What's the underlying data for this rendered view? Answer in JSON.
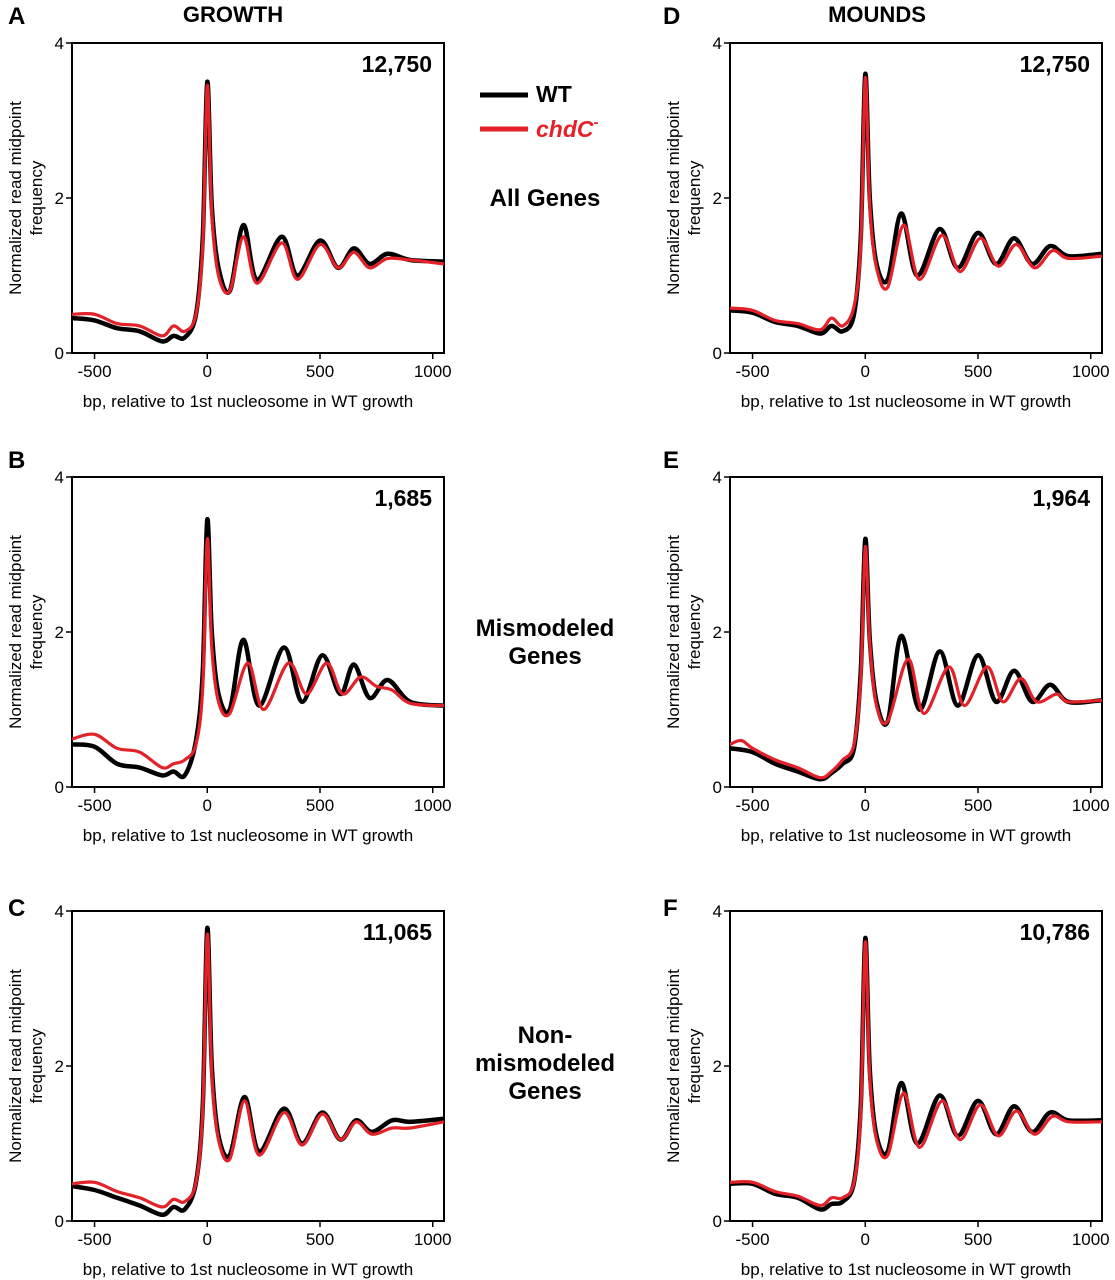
{
  "figure": {
    "column_titles": [
      "GROWTH",
      "MOUNDS"
    ],
    "row_labels": [
      [
        "All Genes"
      ],
      [
        "Mismodeled",
        "Genes"
      ],
      [
        "Non-",
        "mismodeled",
        "Genes"
      ]
    ],
    "legend": [
      {
        "label": "WT",
        "color": "#000000"
      },
      {
        "label": "chdC",
        "superscript": "-",
        "color": "#e32128"
      }
    ]
  },
  "chart_data": [
    {
      "panel": "A",
      "type": "line",
      "count_label": "12,750",
      "xlabel": "bp, relative to 1st nucleosome in WT growth",
      "ylabel": [
        "Normalized read midpoint",
        "frequency"
      ],
      "xticks": [
        -500,
        0,
        500,
        1000
      ],
      "yticks": [
        0,
        2,
        4
      ],
      "xlim": [
        -600,
        1050
      ],
      "ylim": [
        0,
        4
      ],
      "series": [
        {
          "name": "WT",
          "color": "#000000",
          "x": [
            -600,
            -500,
            -400,
            -300,
            -200,
            -150,
            -100,
            -50,
            -20,
            0,
            20,
            50,
            100,
            160,
            220,
            330,
            400,
            500,
            580,
            650,
            720,
            800,
            900,
            1050
          ],
          "y": [
            0.45,
            0.42,
            0.32,
            0.28,
            0.15,
            0.22,
            0.2,
            0.5,
            1.5,
            3.5,
            1.9,
            1.1,
            0.8,
            1.65,
            0.95,
            1.5,
            1.0,
            1.45,
            1.1,
            1.35,
            1.15,
            1.28,
            1.2,
            1.18
          ]
        },
        {
          "name": "chdC",
          "color": "#e32128",
          "x": [
            -600,
            -500,
            -400,
            -300,
            -200,
            -150,
            -100,
            -50,
            -20,
            0,
            20,
            50,
            100,
            160,
            220,
            330,
            400,
            500,
            580,
            650,
            720,
            800,
            900,
            1050
          ],
          "y": [
            0.5,
            0.5,
            0.38,
            0.35,
            0.22,
            0.35,
            0.28,
            0.5,
            1.4,
            3.45,
            1.8,
            1.0,
            0.8,
            1.5,
            0.9,
            1.42,
            0.95,
            1.4,
            1.1,
            1.3,
            1.1,
            1.22,
            1.2,
            1.15
          ]
        }
      ]
    },
    {
      "panel": "B",
      "type": "line",
      "count_label": "1,685",
      "xlabel": "bp, relative to 1st nucleosome in WT growth",
      "ylabel": [
        "Normalized read midpoint",
        "frequency"
      ],
      "xticks": [
        -500,
        0,
        500,
        1000
      ],
      "yticks": [
        0,
        2,
        4
      ],
      "xlim": [
        -600,
        1050
      ],
      "ylim": [
        0,
        4
      ],
      "series": [
        {
          "name": "WT",
          "color": "#000000",
          "x": [
            -600,
            -500,
            -400,
            -300,
            -200,
            -150,
            -100,
            -50,
            -20,
            0,
            20,
            50,
            100,
            160,
            230,
            340,
            420,
            510,
            590,
            650,
            720,
            800,
            900,
            1050
          ],
          "y": [
            0.55,
            0.52,
            0.3,
            0.25,
            0.15,
            0.2,
            0.15,
            0.6,
            1.5,
            3.45,
            2.0,
            1.2,
            1.0,
            1.9,
            1.05,
            1.8,
            1.1,
            1.7,
            1.2,
            1.58,
            1.15,
            1.38,
            1.1,
            1.05
          ]
        },
        {
          "name": "chdC",
          "color": "#e32128",
          "x": [
            -600,
            -500,
            -400,
            -300,
            -200,
            -150,
            -100,
            -50,
            -20,
            0,
            20,
            50,
            100,
            180,
            250,
            360,
            440,
            530,
            600,
            680,
            750,
            820,
            900,
            1050
          ],
          "y": [
            0.62,
            0.68,
            0.5,
            0.45,
            0.25,
            0.3,
            0.35,
            0.55,
            1.3,
            3.2,
            1.8,
            1.1,
            0.95,
            1.6,
            1.0,
            1.6,
            1.2,
            1.6,
            1.2,
            1.42,
            1.3,
            1.25,
            1.08,
            1.05
          ]
        }
      ]
    },
    {
      "panel": "C",
      "type": "line",
      "count_label": "11,065",
      "xlabel": "bp, relative to 1st nucleosome in WT growth",
      "ylabel": [
        "Normalized read midpoint",
        "frequency"
      ],
      "xticks": [
        -500,
        0,
        500,
        1000
      ],
      "yticks": [
        0,
        2,
        4
      ],
      "xlim": [
        -600,
        1050
      ],
      "ylim": [
        0,
        4
      ],
      "series": [
        {
          "name": "WT",
          "color": "#000000",
          "x": [
            -600,
            -500,
            -400,
            -300,
            -200,
            -150,
            -100,
            -50,
            -20,
            0,
            20,
            50,
            100,
            165,
            230,
            340,
            420,
            510,
            590,
            660,
            730,
            820,
            900,
            1050
          ],
          "y": [
            0.45,
            0.4,
            0.3,
            0.2,
            0.08,
            0.18,
            0.15,
            0.5,
            1.5,
            3.78,
            2.0,
            1.1,
            0.85,
            1.6,
            0.9,
            1.45,
            1.0,
            1.4,
            1.05,
            1.3,
            1.15,
            1.3,
            1.28,
            1.32
          ]
        },
        {
          "name": "chdC",
          "color": "#e32128",
          "x": [
            -600,
            -500,
            -400,
            -300,
            -200,
            -150,
            -100,
            -50,
            -20,
            0,
            20,
            50,
            100,
            165,
            230,
            340,
            420,
            510,
            590,
            660,
            730,
            820,
            900,
            1050
          ],
          "y": [
            0.48,
            0.5,
            0.38,
            0.3,
            0.18,
            0.28,
            0.25,
            0.5,
            1.45,
            3.7,
            1.9,
            1.05,
            0.8,
            1.55,
            0.85,
            1.4,
            0.98,
            1.38,
            1.05,
            1.28,
            1.12,
            1.2,
            1.2,
            1.28
          ]
        }
      ]
    },
    {
      "panel": "D",
      "type": "line",
      "count_label": "12,750",
      "xlabel": "bp, relative to 1st nucleosome in WT growth",
      "ylabel": [
        "Normalized read midpoint",
        "frequency"
      ],
      "xticks": [
        -500,
        0,
        500,
        1000
      ],
      "yticks": [
        0,
        2,
        4
      ],
      "xlim": [
        -600,
        1050
      ],
      "ylim": [
        0,
        4
      ],
      "series": [
        {
          "name": "WT",
          "color": "#000000",
          "x": [
            -600,
            -500,
            -400,
            -300,
            -200,
            -150,
            -100,
            -50,
            -20,
            0,
            20,
            50,
            100,
            160,
            230,
            330,
            410,
            500,
            580,
            660,
            740,
            820,
            900,
            1050
          ],
          "y": [
            0.55,
            0.52,
            0.4,
            0.35,
            0.25,
            0.35,
            0.28,
            0.5,
            1.5,
            3.6,
            2.0,
            1.15,
            0.95,
            1.8,
            1.0,
            1.6,
            1.1,
            1.55,
            1.15,
            1.48,
            1.15,
            1.38,
            1.25,
            1.28
          ]
        },
        {
          "name": "chdC",
          "color": "#e32128",
          "x": [
            -600,
            -500,
            -400,
            -300,
            -200,
            -150,
            -100,
            -50,
            -20,
            0,
            20,
            50,
            100,
            170,
            240,
            340,
            420,
            510,
            590,
            670,
            750,
            830,
            900,
            1050
          ],
          "y": [
            0.58,
            0.55,
            0.42,
            0.38,
            0.3,
            0.45,
            0.35,
            0.6,
            1.4,
            3.55,
            1.9,
            1.1,
            0.85,
            1.65,
            0.95,
            1.52,
            1.05,
            1.48,
            1.12,
            1.4,
            1.1,
            1.32,
            1.22,
            1.25
          ]
        }
      ]
    },
    {
      "panel": "E",
      "type": "line",
      "count_label": "1,964",
      "xlabel": "bp, relative to 1st nucleosome in WT growth",
      "ylabel": [
        "Normalized read midpoint",
        "frequency"
      ],
      "xticks": [
        -500,
        0,
        500,
        1000
      ],
      "yticks": [
        0,
        2,
        4
      ],
      "xlim": [
        -600,
        1050
      ],
      "ylim": [
        0,
        4
      ],
      "series": [
        {
          "name": "WT",
          "color": "#000000",
          "x": [
            -600,
            -500,
            -400,
            -300,
            -200,
            -150,
            -100,
            -50,
            -20,
            0,
            20,
            50,
            100,
            160,
            240,
            330,
            410,
            500,
            580,
            660,
            740,
            820,
            900,
            1050
          ],
          "y": [
            0.5,
            0.45,
            0.3,
            0.2,
            0.1,
            0.18,
            0.3,
            0.5,
            1.5,
            3.2,
            1.9,
            1.1,
            0.85,
            1.95,
            1.0,
            1.75,
            1.05,
            1.7,
            1.1,
            1.5,
            1.1,
            1.32,
            1.1,
            1.12
          ]
        },
        {
          "name": "chdC",
          "color": "#e32128",
          "x": [
            -600,
            -550,
            -500,
            -400,
            -300,
            -200,
            -150,
            -100,
            -50,
            -20,
            0,
            20,
            50,
            100,
            190,
            260,
            370,
            440,
            540,
            610,
            690,
            760,
            850,
            900,
            1050
          ],
          "y": [
            0.55,
            0.6,
            0.5,
            0.35,
            0.25,
            0.12,
            0.2,
            0.35,
            0.55,
            1.4,
            3.1,
            1.85,
            1.05,
            0.85,
            1.65,
            0.95,
            1.55,
            1.05,
            1.55,
            1.1,
            1.4,
            1.1,
            1.2,
            1.1,
            1.12
          ]
        }
      ]
    },
    {
      "panel": "F",
      "type": "line",
      "count_label": "10,786",
      "xlabel": "bp, relative to 1st nucleosome in WT growth",
      "ylabel": [
        "Normalized read midpoint",
        "frequency"
      ],
      "xticks": [
        -500,
        0,
        500,
        1000
      ],
      "yticks": [
        0,
        2,
        4
      ],
      "xlim": [
        -600,
        1050
      ],
      "ylim": [
        0,
        4
      ],
      "series": [
        {
          "name": "WT",
          "color": "#000000",
          "x": [
            -600,
            -500,
            -400,
            -300,
            -200,
            -150,
            -100,
            -50,
            -20,
            0,
            20,
            50,
            100,
            160,
            230,
            330,
            410,
            500,
            580,
            660,
            740,
            820,
            900,
            1050
          ],
          "y": [
            0.48,
            0.48,
            0.35,
            0.3,
            0.15,
            0.22,
            0.25,
            0.5,
            1.5,
            3.65,
            1.95,
            1.1,
            0.9,
            1.78,
            1.0,
            1.62,
            1.1,
            1.55,
            1.12,
            1.48,
            1.15,
            1.4,
            1.3,
            1.3
          ]
        },
        {
          "name": "chdC",
          "color": "#e32128",
          "x": [
            -600,
            -500,
            -400,
            -300,
            -200,
            -150,
            -100,
            -50,
            -20,
            0,
            20,
            50,
            100,
            170,
            240,
            340,
            420,
            510,
            590,
            670,
            750,
            830,
            900,
            1050
          ],
          "y": [
            0.5,
            0.5,
            0.38,
            0.32,
            0.2,
            0.3,
            0.3,
            0.5,
            1.4,
            3.6,
            1.85,
            1.05,
            0.85,
            1.65,
            0.95,
            1.55,
            1.05,
            1.5,
            1.1,
            1.42,
            1.12,
            1.35,
            1.28,
            1.28
          ]
        }
      ]
    }
  ]
}
